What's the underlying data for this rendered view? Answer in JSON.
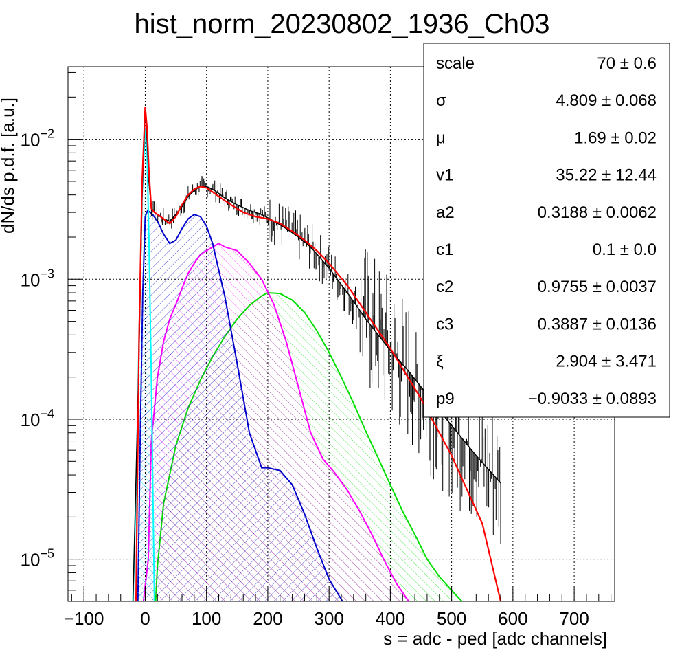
{
  "chart_data": {
    "type": "line",
    "title": "hist_norm_20230802_1936_Ch03",
    "xlabel": "s = adc - ped [adc channels]",
    "ylabel": "dN/ds p.d.f. [a.u.]",
    "xlim": [
      -126,
      766
    ],
    "ylim": [
      5e-06,
      0.033
    ],
    "yscale": "log",
    "grid": true,
    "x_ticks": [
      {
        "value": -100,
        "label": "−100"
      },
      {
        "value": 0,
        "label": "0"
      },
      {
        "value": 100,
        "label": "100"
      },
      {
        "value": 200,
        "label": "200"
      },
      {
        "value": 300,
        "label": "300"
      },
      {
        "value": 400,
        "label": "400"
      },
      {
        "value": 500,
        "label": "500"
      },
      {
        "value": 600,
        "label": "600"
      },
      {
        "value": 700,
        "label": "700"
      }
    ],
    "y_ticks": [
      {
        "value": 1e-05,
        "base": "10",
        "exp": "−5"
      },
      {
        "value": 0.0001,
        "base": "10",
        "exp": "−4"
      },
      {
        "value": 0.001,
        "base": "10",
        "exp": "−3"
      },
      {
        "value": 0.01,
        "base": "10",
        "exp": "−2"
      }
    ],
    "series": [
      {
        "color": "#000000",
        "style": "histogram",
        "x": [
          -20,
          -10,
          -5,
          0,
          3,
          6,
          10,
          15,
          20,
          30,
          40,
          50,
          60,
          70,
          80,
          90,
          100,
          110,
          120,
          130,
          150,
          170,
          190,
          210,
          230,
          250,
          270,
          300,
          330,
          360,
          400,
          430,
          460,
          500,
          540,
          580
        ],
        "y": [
          5e-06,
          0.0003,
          0.004,
          0.016,
          0.01,
          0.005,
          0.0032,
          0.003,
          0.0029,
          0.0027,
          0.0026,
          0.0029,
          0.0033,
          0.0039,
          0.0043,
          0.0046,
          0.0046,
          0.0044,
          0.0041,
          0.0038,
          0.0034,
          0.0031,
          0.0029,
          0.0026,
          0.0023,
          0.002,
          0.0017,
          0.0012,
          0.0008,
          0.00052,
          0.00031,
          0.00022,
          0.00015,
          9e-05,
          5.5e-05,
          3.5e-05
        ]
      },
      {
        "color": "#ff0000",
        "style": "line",
        "x": [
          -15,
          -10,
          -5,
          0,
          3,
          6,
          10,
          15,
          20,
          30,
          40,
          50,
          60,
          70,
          80,
          90,
          100,
          110,
          120,
          140,
          160,
          180,
          200,
          220,
          240,
          260,
          280,
          300,
          330,
          360,
          400,
          450,
          500,
          550,
          580
        ],
        "y": [
          5e-06,
          0.0004,
          0.005,
          0.017,
          0.012,
          0.006,
          0.0032,
          0.003,
          0.0029,
          0.0027,
          0.0025,
          0.0028,
          0.0034,
          0.004,
          0.0044,
          0.0046,
          0.0045,
          0.0042,
          0.0039,
          0.0034,
          0.003,
          0.0028,
          0.0027,
          0.0025,
          0.0022,
          0.0019,
          0.0016,
          0.0013,
          0.0009,
          0.00058,
          0.00032,
          0.00014,
          5.5e-05,
          1.8e-05,
          5e-06
        ]
      },
      {
        "color": "#00ffff",
        "style": "filled-hatch",
        "x": [
          -20,
          -15,
          -10,
          -5,
          0,
          3,
          6,
          10,
          15
        ],
        "y": [
          5e-06,
          3e-05,
          0.0004,
          0.004,
          0.012,
          0.008,
          0.002,
          0.0002,
          5e-06
        ]
      },
      {
        "color": "#0000cc",
        "style": "filled-hatch",
        "x": [
          -12,
          -8,
          -4,
          0,
          4,
          8,
          12,
          20,
          30,
          40,
          50,
          60,
          70,
          80,
          90,
          100,
          110,
          130,
          150,
          170,
          190,
          200,
          220,
          240,
          260,
          280,
          300,
          322
        ],
        "y": [
          5e-06,
          8e-05,
          0.0008,
          0.0028,
          0.0031,
          0.003,
          0.0029,
          0.0026,
          0.0021,
          0.0018,
          0.0019,
          0.0023,
          0.0027,
          0.0029,
          0.0028,
          0.0024,
          0.0018,
          0.00075,
          0.00025,
          8e-05,
          4.5e-05,
          4.5e-05,
          4.3e-05,
          3.4e-05,
          2.1e-05,
          1.2e-05,
          7.2e-06,
          5e-06
        ]
      },
      {
        "color": "#ff00ff",
        "style": "filled-hatch",
        "x": [
          -3,
          5,
          10,
          20,
          30,
          40,
          50,
          60,
          70,
          80,
          90,
          100,
          110,
          120,
          130,
          150,
          170,
          190,
          210,
          230,
          250,
          270,
          290,
          310,
          330,
          350,
          370,
          390,
          410,
          430
        ],
        "y": [
          5e-06,
          1e-05,
          7e-05,
          0.0002,
          0.00036,
          0.00052,
          0.00066,
          0.00086,
          0.0011,
          0.0013,
          0.0015,
          0.0016,
          0.0017,
          0.0018,
          0.0017,
          0.0016,
          0.0013,
          0.001,
          0.00066,
          0.00036,
          0.00017,
          8e-05,
          5.2e-05,
          4.1e-05,
          3.1e-05,
          2.2e-05,
          1.5e-05,
          9.8e-06,
          6.7e-06,
          5e-06
        ]
      },
      {
        "color": "#00dd00",
        "style": "filled-hatch",
        "x": [
          17,
          20,
          30,
          50,
          70,
          90,
          110,
          130,
          150,
          170,
          190,
          200,
          220,
          240,
          260,
          280,
          300,
          320,
          340,
          360,
          380,
          400,
          420,
          440,
          460,
          480,
          500,
          517
        ],
        "y": [
          5e-06,
          9e-06,
          2.5e-05,
          6.5e-05,
          0.00012,
          0.00019,
          0.00028,
          0.00039,
          0.00052,
          0.00065,
          0.00076,
          0.0008,
          0.00079,
          0.00071,
          0.00058,
          0.00043,
          0.0003,
          0.0002,
          0.00013,
          8.2e-05,
          5.3e-05,
          3.4e-05,
          2.2e-05,
          1.5e-05,
          1e-05,
          7.5e-06,
          6e-06,
          5e-06
        ]
      }
    ]
  },
  "stats": [
    {
      "key": "scale",
      "value": "70 ± 0.6"
    },
    {
      "key": "σ",
      "value": "4.809 ± 0.068"
    },
    {
      "key": "μ",
      "value": "1.69 ± 0.02"
    },
    {
      "key": "v1",
      "value": "35.22 ± 12.44"
    },
    {
      "key": "a2",
      "value": "0.3188 ± 0.0062"
    },
    {
      "key": "c1",
      "value": "0.1 ± 0.0"
    },
    {
      "key": "c2",
      "value": "0.9755 ± 0.0037"
    },
    {
      "key": "c3",
      "value": "0.3887 ± 0.0136"
    },
    {
      "key": "ξ",
      "value": "2.904 ± 3.471"
    },
    {
      "key": "p9",
      "value": "−0.9033 ± 0.0893"
    }
  ]
}
